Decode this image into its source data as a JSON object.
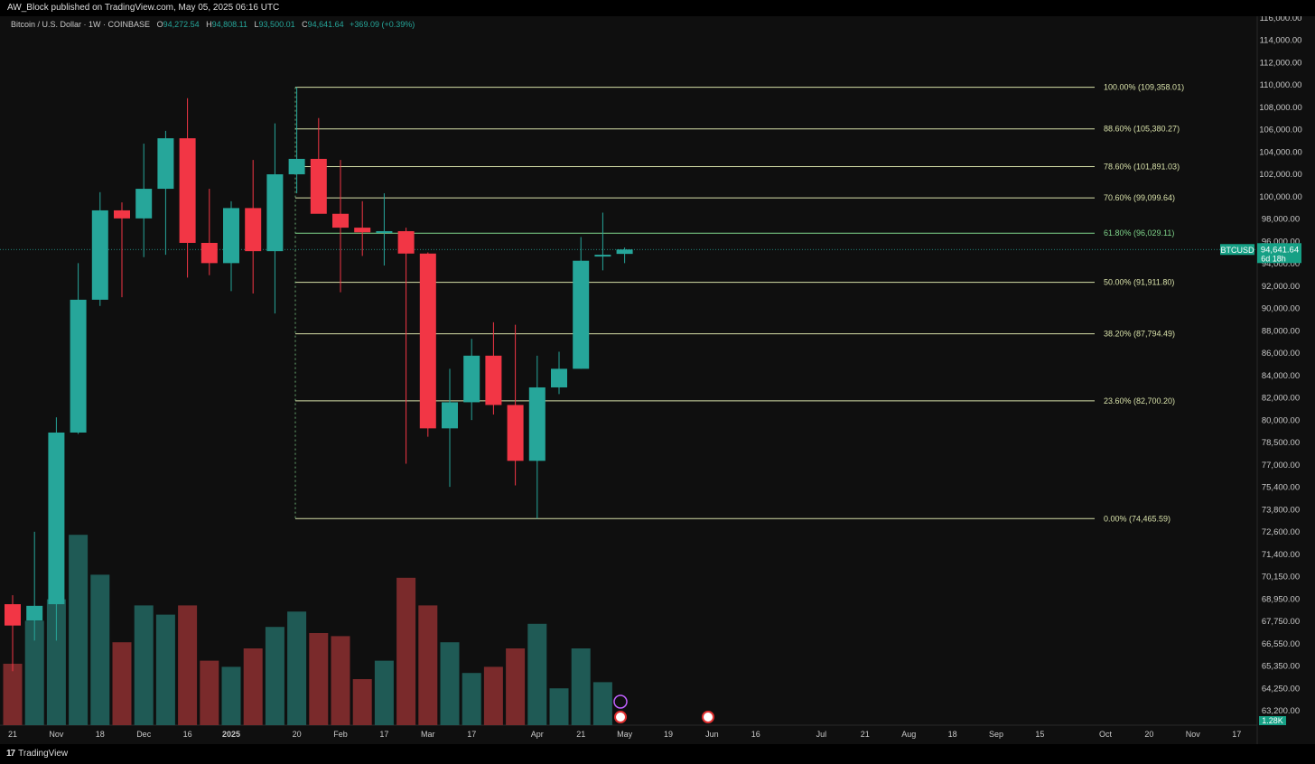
{
  "publisher": "AW_Block published on TradingView.com, May 05, 2025 06:16 UTC",
  "legend": {
    "symbol": "Bitcoin / U.S. Dollar · 1W · COINBASE",
    "o_label": "O",
    "o": "94,272.54",
    "h_label": "H",
    "h": "94,808.11",
    "l_label": "L",
    "l": "93,500.01",
    "c_label": "C",
    "c": "94,641.64",
    "change": "+369.09 (+0.39%)"
  },
  "branding": "TradingView",
  "colors": {
    "up": "#26a69a",
    "down": "#f23645",
    "vol_up": "#1f5a55",
    "vol_down": "#7a2a2b",
    "fib": "#d7e0a9",
    "fib_key": "#7fd38a",
    "bg": "#0f0f0f",
    "badge": "#16a085"
  },
  "chart_data": {
    "type": "candlestick",
    "title": "Bitcoin / U.S. Dollar · 1W · COINBASE",
    "y_scale": "log",
    "ylim": [
      62000,
      116500
    ],
    "y_ticks": [
      "116,000.00",
      "114,000.00",
      "112,000.00",
      "110,000.00",
      "108,000.00",
      "106,000.00",
      "104,000.00",
      "102,000.00",
      "100,000.00",
      "98,000.00",
      "96,000.00",
      "94,000.00",
      "92,000.00",
      "90,000.00",
      "88,000.00",
      "86,000.00",
      "84,000.00",
      "82,000.00",
      "80,000.00",
      "78,500.00",
      "77,000.00",
      "75,400.00",
      "73,800.00",
      "72,600.00",
      "71,400.00",
      "70,150.00",
      "68,950.00",
      "67,750.00",
      "66,550.00",
      "65,350.00",
      "64,250.00",
      "63,200.00"
    ],
    "x_ticks": [
      "21",
      "Nov",
      "18",
      "Dec",
      "16",
      "2025",
      "20",
      "Feb",
      "17",
      "Mar",
      "17",
      "Apr",
      "21",
      "May",
      "19",
      "Jun",
      "16",
      "Jul",
      "21",
      "Aug",
      "18",
      "Sep",
      "15",
      "Oct",
      "20",
      "Nov",
      "17"
    ],
    "x_tick_slots": [
      0,
      2,
      4,
      6,
      8,
      10,
      13,
      15,
      17,
      19,
      21,
      24,
      26,
      28,
      30,
      32,
      34,
      37,
      39,
      41,
      43,
      45,
      47,
      50,
      52,
      54,
      56
    ],
    "candles": [
      {
        "date": "2024-10-21",
        "o": 69000,
        "h": 69550,
        "l": 65000,
        "c": 67700,
        "vol": 0.2
      },
      {
        "date": "2024-10-28",
        "o": 68000,
        "h": 73600,
        "l": 66800,
        "c": 68900,
        "vol": 0.34
      },
      {
        "date": "2024-11-04",
        "o": 69000,
        "h": 81500,
        "l": 66800,
        "c": 80400,
        "vol": 0.41
      },
      {
        "date": "2024-11-11",
        "o": 80400,
        "h": 93500,
        "l": 80300,
        "c": 90500,
        "vol": 0.62
      },
      {
        "date": "2024-11-18",
        "o": 90500,
        "h": 99600,
        "l": 90000,
        "c": 98000,
        "vol": 0.49
      },
      {
        "date": "2024-11-25",
        "o": 98000,
        "h": 98700,
        "l": 90700,
        "c": 97300,
        "vol": 0.27
      },
      {
        "date": "2024-12-02",
        "o": 97300,
        "h": 104000,
        "l": 94000,
        "c": 99900,
        "vol": 0.39
      },
      {
        "date": "2024-12-09",
        "o": 99900,
        "h": 105200,
        "l": 94200,
        "c": 104500,
        "vol": 0.36
      },
      {
        "date": "2024-12-16",
        "o": 104500,
        "h": 108300,
        "l": 92300,
        "c": 95200,
        "vol": 0.39
      },
      {
        "date": "2024-12-23",
        "o": 95200,
        "h": 99900,
        "l": 92500,
        "c": 93500,
        "vol": 0.21
      },
      {
        "date": "2024-12-30",
        "o": 93500,
        "h": 98800,
        "l": 91200,
        "c": 98200,
        "vol": 0.19
      },
      {
        "date": "2025-01-06",
        "o": 98200,
        "h": 102500,
        "l": 91000,
        "c": 94500,
        "vol": 0.25
      },
      {
        "date": "2025-01-13",
        "o": 94500,
        "h": 105900,
        "l": 89400,
        "c": 101200,
        "vol": 0.32
      },
      {
        "date": "2025-01-20",
        "o": 101200,
        "h": 109358,
        "l": 99500,
        "c": 102600,
        "vol": 0.37
      },
      {
        "date": "2025-01-27",
        "o": 102600,
        "h": 106400,
        "l": 97800,
        "c": 97700,
        "vol": 0.3
      },
      {
        "date": "2025-02-03",
        "o": 97700,
        "h": 102500,
        "l": 91100,
        "c": 96500,
        "vol": 0.29
      },
      {
        "date": "2025-02-10",
        "o": 96500,
        "h": 98800,
        "l": 94100,
        "c": 96100,
        "vol": 0.15
      },
      {
        "date": "2025-02-17",
        "o": 96100,
        "h": 99500,
        "l": 93300,
        "c": 96200,
        "vol": 0.21
      },
      {
        "date": "2025-02-24",
        "o": 96200,
        "h": 96500,
        "l": 78200,
        "c": 94300,
        "vol": 0.48
      },
      {
        "date": "2025-03-03",
        "o": 94300,
        "h": 94400,
        "l": 80100,
        "c": 80700,
        "vol": 0.39
      },
      {
        "date": "2025-03-10",
        "o": 80700,
        "h": 85100,
        "l": 76600,
        "c": 82600,
        "vol": 0.27
      },
      {
        "date": "2025-03-17",
        "o": 82600,
        "h": 87400,
        "l": 81300,
        "c": 86100,
        "vol": 0.17
      },
      {
        "date": "2025-03-24",
        "o": 86100,
        "h": 88700,
        "l": 81700,
        "c": 82400,
        "vol": 0.19
      },
      {
        "date": "2025-03-31",
        "o": 82400,
        "h": 88500,
        "l": 76700,
        "c": 78400,
        "vol": 0.25
      },
      {
        "date": "2025-04-07",
        "o": 78400,
        "h": 86100,
        "l": 74466,
        "c": 83700,
        "vol": 0.33
      },
      {
        "date": "2025-04-14",
        "o": 83700,
        "h": 86400,
        "l": 83200,
        "c": 85100,
        "vol": 0.12
      },
      {
        "date": "2025-04-21",
        "o": 85100,
        "h": 95700,
        "l": 85100,
        "c": 93700,
        "vol": 0.25
      },
      {
        "date": "2025-04-28",
        "o": 94100,
        "h": 97800,
        "l": 92900,
        "c": 94200,
        "vol": 0.14
      },
      {
        "date": "2025-05-05",
        "o": 94272.54,
        "h": 94808.11,
        "l": 93500.01,
        "c": 94641.64,
        "vol": 0.0
      }
    ],
    "fib_levels": [
      {
        "label": "100.00% (109,358.01)",
        "price": 109358.01
      },
      {
        "label": "88.60% (105,380.27)",
        "price": 105380.27
      },
      {
        "label": "78.60% (101,891.03)",
        "price": 101891.03
      },
      {
        "label": "70.60% (99,099.64)",
        "price": 99099.64
      },
      {
        "label": "61.80% (96,029.11)",
        "price": 96029.11,
        "key": true
      },
      {
        "label": "50.00% (91,911.80)",
        "price": 91911.8
      },
      {
        "label": "38.20% (87,794.49)",
        "price": 87794.49
      },
      {
        "label": "23.60% (82,700.20)",
        "price": 82700.2
      },
      {
        "label": "0.00% (74,465.59)",
        "price": 74465.59
      }
    ],
    "last_price": {
      "symbol": "BTCUSD",
      "price": "94,641.64",
      "countdown": "6d 18h",
      "value": 94641.64
    },
    "volume_label": "1.28K"
  }
}
